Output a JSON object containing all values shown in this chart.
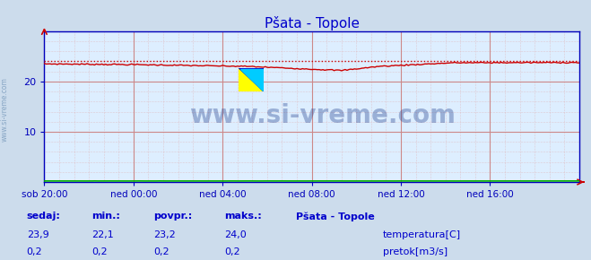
{
  "title": "Pšata - Topole",
  "title_color": "#0000cc",
  "bg_color": "#ccdcec",
  "plot_bg_color": "#ddeeff",
  "grid_color": "#cc8888",
  "grid_minor_color": "#ddaaaa",
  "axis_color": "#0000bb",
  "tick_color": "#0000bb",
  "ylim": [
    0,
    30
  ],
  "yticks": [
    10,
    20
  ],
  "xlim": [
    0,
    288
  ],
  "xtick_labels": [
    "sob 20:00",
    "ned 00:00",
    "ned 04:00",
    "ned 08:00",
    "ned 12:00",
    "ned 16:00"
  ],
  "xtick_positions": [
    0,
    48,
    96,
    144,
    192,
    240
  ],
  "temp_color": "#cc0000",
  "pretok_color": "#00aa00",
  "max_line_color": "#cc0000",
  "watermark_text": "www.si-vreme.com",
  "watermark_color": "#1a3a8a",
  "watermark_alpha": 0.35,
  "side_text": "www.si-vreme.com",
  "side_text_color": "#7799bb",
  "legend_title": "Pšata - Topole",
  "footer_label_color": "#0000cc",
  "footer_value_color": "#0000cc",
  "temp_min": "22,1",
  "temp_max": "24,0",
  "temp_avg": "23,2",
  "temp_now": "23,9",
  "pretok_min": "0,2",
  "pretok_max": "0,2",
  "pretok_avg": "0,2",
  "pretok_now": "0,2"
}
